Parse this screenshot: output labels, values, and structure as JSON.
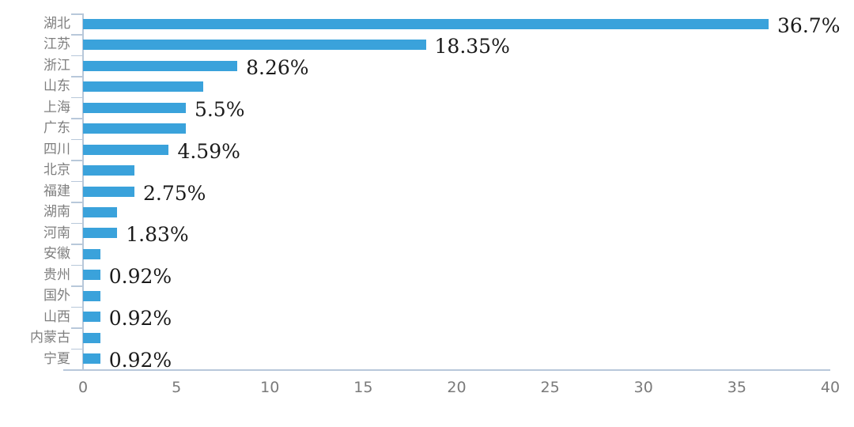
{
  "chart_data": {
    "type": "bar",
    "orientation": "horizontal",
    "title": "",
    "xlabel": "",
    "ylabel": "",
    "categories": [
      "湖北",
      "江苏",
      "浙江",
      "山东",
      "上海",
      "广东",
      "四川",
      "北京",
      "福建",
      "湖南",
      "河南",
      "安徽",
      "贵州",
      "国外",
      "山西",
      "内蒙古",
      "宁夏"
    ],
    "values": [
      36.7,
      18.35,
      8.26,
      6.42,
      5.5,
      5.5,
      4.59,
      2.75,
      2.75,
      1.83,
      1.83,
      0.92,
      0.92,
      0.92,
      0.92,
      0.92,
      0.92
    ],
    "data_labels": [
      "36.7%",
      "18.35%",
      "8.26%",
      "",
      "5.5%",
      "",
      "4.59%",
      "",
      "2.75%",
      "",
      "1.83%",
      "",
      "0.92%",
      "",
      "0.92%",
      "",
      "0.92%"
    ],
    "x_ticks": [
      "0",
      "5",
      "10",
      "15",
      "20",
      "25",
      "30",
      "35",
      "40"
    ],
    "xlim": [
      0,
      40
    ],
    "grid": false,
    "legend_position": "none",
    "colors": {
      "bar": "#3aa2db",
      "axis_line": "#b8c8da",
      "category_label": "#7f7f7f",
      "x_tick_label": "#7a7a7a",
      "data_label": "#1a1a1a",
      "background": "#ffffff"
    }
  }
}
